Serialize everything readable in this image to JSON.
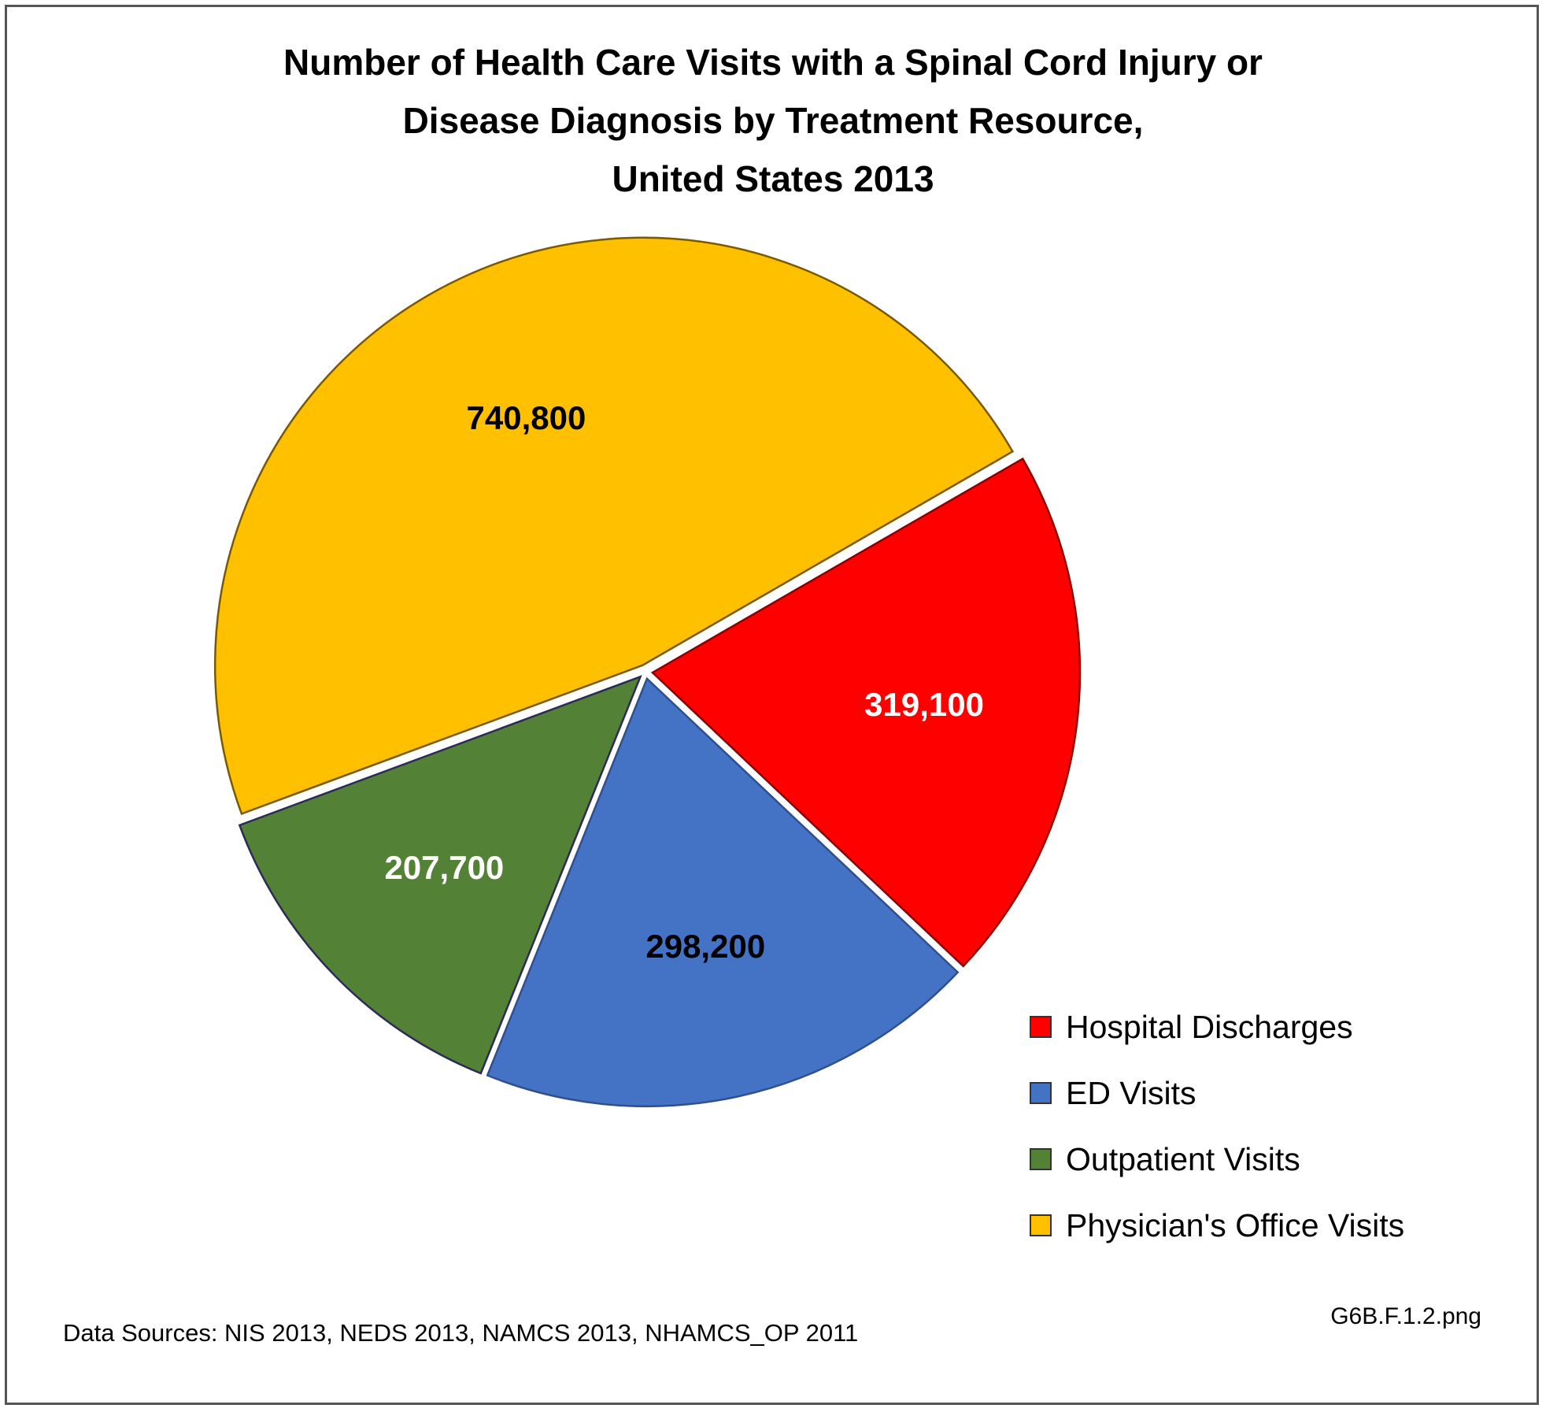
{
  "chart_data": {
    "type": "pie",
    "title_lines": [
      "Number of Health Care Visits with a Spinal Cord Injury or",
      "Disease Diagnosis by Treatment Resource,",
      "United States 2013"
    ],
    "slices": [
      {
        "name": "Hospital Discharges",
        "value": 319100,
        "label": "319,100",
        "color": "#ff0000",
        "label_color": "#ffffff"
      },
      {
        "name": "ED Visits",
        "value": 298200,
        "label": "298,200",
        "color": "#4472c4",
        "label_color": "#000000"
      },
      {
        "name": "Outpatient Visits",
        "value": 207700,
        "label": "207,700",
        "color": "#538135",
        "label_color": "#ffffff"
      },
      {
        "name": "Physician's Office Visits",
        "value": 740800,
        "label": "740,800",
        "color": "#ffc000",
        "label_color": "#000000"
      }
    ],
    "legend_position": "bottom-right"
  },
  "footer": {
    "sources": "Data Sources: NIS 2013, NEDS 2013, NAMCS 2013, NHAMCS_OP 2011",
    "filename": "G6B.F.1.2.png"
  }
}
